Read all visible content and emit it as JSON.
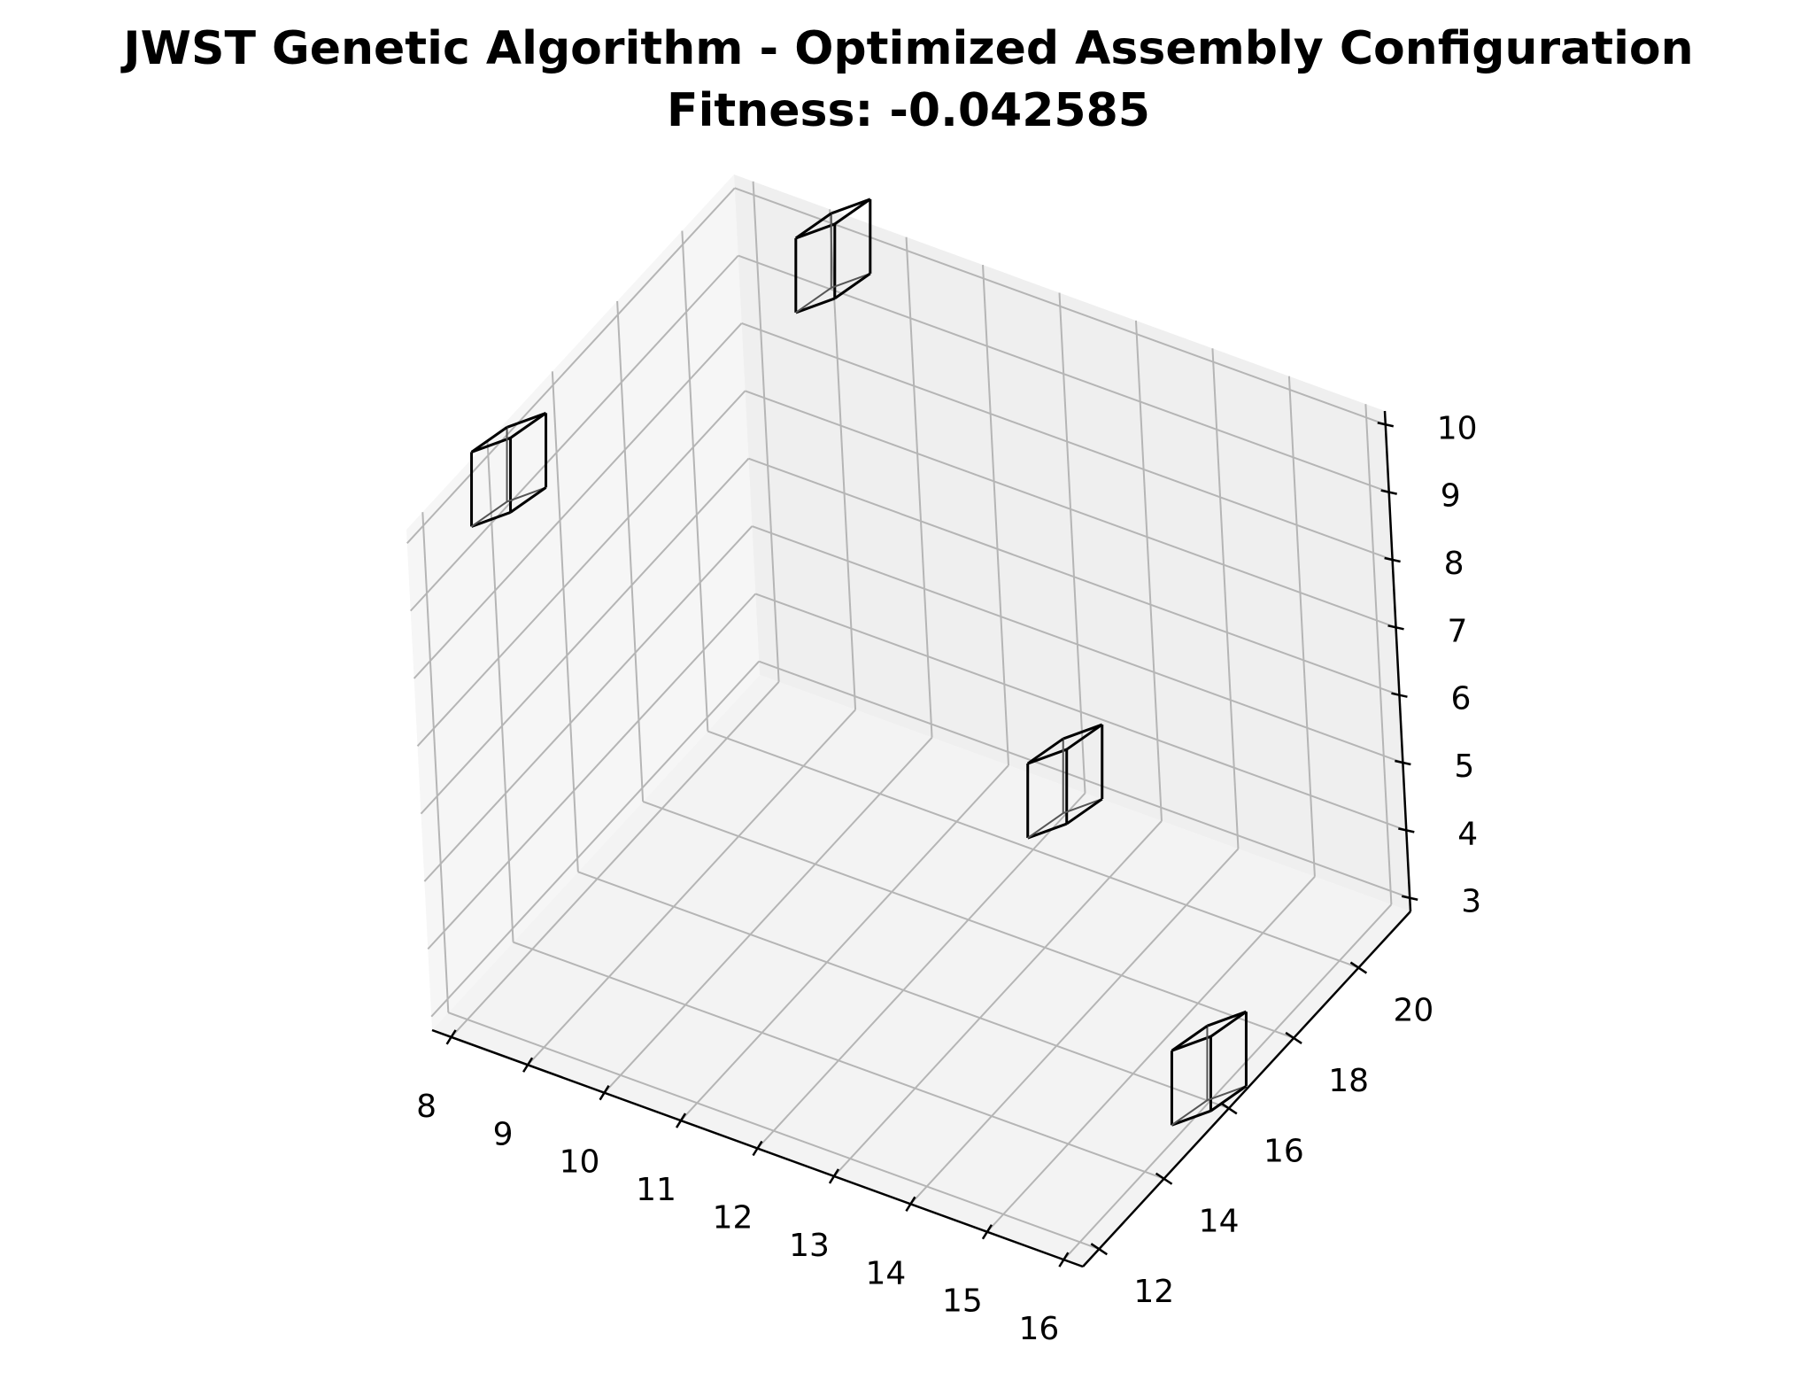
{
  "chart_data": {
    "type": "scatter3d",
    "title": "JWST Genetic Algorithm - Optimized Assembly Configuration",
    "subtitle": "Fitness: -0.042585",
    "xlabel": "",
    "ylabel": "",
    "zlabel": "",
    "xlim": [
      7.75,
      16.25
    ],
    "ylim": [
      11.5,
      21.6
    ],
    "zlim": [
      2.8,
      10.2
    ],
    "x_ticks": [
      "8",
      "9",
      "10",
      "11",
      "12",
      "13",
      "14",
      "15",
      "16"
    ],
    "y_ticks": [
      "12",
      "14",
      "16",
      "18",
      "20"
    ],
    "z_ticks": [
      "3",
      "4",
      "5",
      "6",
      "7",
      "8",
      "9",
      "10"
    ],
    "grid": true,
    "marker": "wireframe-cube",
    "points": [
      {
        "x": 8,
        "y": 14,
        "z": 9.6
      },
      {
        "x": 9.5,
        "y": 20.5,
        "z": 10
      },
      {
        "x": 16,
        "y": 16,
        "z": 3
      },
      {
        "x": 12,
        "y": 21,
        "z": 3
      }
    ]
  }
}
